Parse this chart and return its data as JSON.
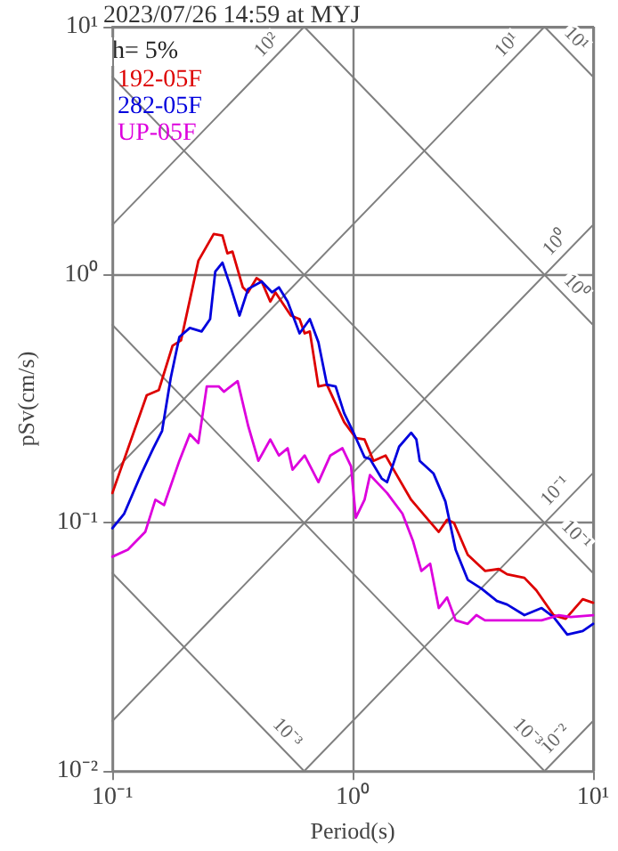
{
  "chart_data": {
    "type": "line",
    "title": "2023/07/26 14:59 at MYJ",
    "xlabel": "Period(s)",
    "ylabel": "pSv(cm/s)",
    "legend_title": "h= 5%",
    "log": "xy",
    "xlim": [
      0.1,
      10
    ],
    "ylim": [
      0.01,
      10
    ],
    "xticks": [
      {
        "value": 0.1,
        "label": "10⁻¹"
      },
      {
        "value": 1,
        "label": "10⁰"
      },
      {
        "value": 10,
        "label": "10¹"
      }
    ],
    "yticks": [
      {
        "value": 0.01,
        "label": "10⁻²"
      },
      {
        "value": 0.1,
        "label": "10⁻¹"
      },
      {
        "value": 1,
        "label": "10⁰"
      },
      {
        "value": 10,
        "label": "10¹"
      }
    ],
    "grid": true,
    "legend": "top left",
    "marker": "none",
    "line_style": "solid",
    "series": [
      {
        "name": "192-05F",
        "color": "#dd0000",
        "x": [
          0.1,
          0.139,
          0.156,
          0.178,
          0.193,
          0.228,
          0.264,
          0.287,
          0.301,
          0.316,
          0.349,
          0.367,
          0.398,
          0.418,
          0.454,
          0.477,
          0.553,
          0.601,
          0.631,
          0.663,
          0.72,
          0.781,
          0.921,
          1.03,
          1.12,
          1.22,
          1.37,
          1.48,
          1.75,
          2.06,
          2.28,
          2.47,
          2.64,
          3.01,
          3.55,
          4.05,
          4.39,
          5.18,
          5.81,
          6.85,
          7.69,
          9.06,
          10
        ],
        "values": [
          0.132,
          0.327,
          0.343,
          0.518,
          0.544,
          1.14,
          1.46,
          1.44,
          1.22,
          1.24,
          0.89,
          0.85,
          0.97,
          0.94,
          0.78,
          0.85,
          0.685,
          0.663,
          0.581,
          0.591,
          0.355,
          0.361,
          0.255,
          0.22,
          0.217,
          0.178,
          0.187,
          0.164,
          0.124,
          0.103,
          0.092,
          0.103,
          0.1,
          0.0744,
          0.0641,
          0.0652,
          0.0621,
          0.0601,
          0.0535,
          0.0425,
          0.0411,
          0.0493,
          0.0477
        ]
      },
      {
        "name": "282-05F",
        "color": "#0000dd",
        "x": [
          0.1,
          0.112,
          0.132,
          0.148,
          0.161,
          0.175,
          0.19,
          0.21,
          0.235,
          0.255,
          0.268,
          0.287,
          0.311,
          0.338,
          0.367,
          0.418,
          0.462,
          0.493,
          0.536,
          0.601,
          0.663,
          0.72,
          0.781,
          0.849,
          0.921,
          1.0,
          1.12,
          1.18,
          1.32,
          1.39,
          1.56,
          1.75,
          1.84,
          1.9,
          2.17,
          2.43,
          2.68,
          3.01,
          3.43,
          3.98,
          4.39,
          5.18,
          6.11,
          6.85,
          7.81,
          9.06,
          10
        ],
        "values": [
          0.0952,
          0.109,
          0.158,
          0.2,
          0.235,
          0.385,
          0.562,
          0.611,
          0.591,
          0.663,
          1.03,
          1.12,
          0.89,
          0.685,
          0.877,
          0.94,
          0.85,
          0.89,
          0.78,
          0.581,
          0.663,
          0.535,
          0.361,
          0.355,
          0.277,
          0.235,
          0.184,
          0.181,
          0.151,
          0.146,
          0.203,
          0.231,
          0.217,
          0.178,
          0.158,
          0.122,
          0.078,
          0.059,
          0.0544,
          0.0485,
          0.0469,
          0.0425,
          0.0454,
          0.0418,
          0.0355,
          0.0367,
          0.0392
        ]
      },
      {
        "name": "UP-05F",
        "color": "#dd00dd",
        "x": [
          0.1,
          0.116,
          0.137,
          0.151,
          0.164,
          0.19,
          0.21,
          0.228,
          0.247,
          0.277,
          0.291,
          0.332,
          0.367,
          0.405,
          0.454,
          0.493,
          0.536,
          0.562,
          0.631,
          0.72,
          0.807,
          0.906,
          0.984,
          1.03,
          1.12,
          1.18,
          1.39,
          1.61,
          1.78,
          1.93,
          2.1,
          2.28,
          2.47,
          2.68,
          3.01,
          3.27,
          3.55,
          4.18,
          4.93,
          6.11,
          7.2,
          8.07,
          10
        ],
        "values": [
          0.0731,
          0.078,
          0.092,
          0.124,
          0.118,
          0.178,
          0.228,
          0.21,
          0.355,
          0.355,
          0.338,
          0.373,
          0.247,
          0.178,
          0.217,
          0.187,
          0.2,
          0.164,
          0.187,
          0.146,
          0.187,
          0.2,
          0.169,
          0.105,
          0.124,
          0.156,
          0.132,
          0.109,
          0.0848,
          0.0641,
          0.0685,
          0.0454,
          0.0501,
          0.0405,
          0.0392,
          0.0425,
          0.0405,
          0.0405,
          0.0405,
          0.0405,
          0.0425,
          0.0418,
          0.0425
        ]
      },
      {
        "color": "#808080",
        "x": [
          0.1,
          0.628
        ],
        "values": [
          1.59,
          10
        ]
      },
      {
        "color": "#808080",
        "x": [
          0.1,
          6.28
        ],
        "values": [
          0.159,
          10
        ]
      },
      {
        "color": "#808080",
        "x": [
          0.1,
          10
        ],
        "values": [
          0.0159,
          1.59
        ]
      },
      {
        "color": "#808080",
        "x": [
          0.628,
          10
        ],
        "values": [
          0.01,
          0.159
        ]
      },
      {
        "color": "#808080",
        "x": [
          6.28,
          10
        ],
        "values": [
          0.01,
          0.0159
        ]
      },
      {
        "color": "#808080",
        "x": [
          6.28,
          10
        ],
        "values": [
          10,
          6.28
        ]
      },
      {
        "color": "#808080",
        "x": [
          0.628,
          10
        ],
        "values": [
          10,
          0.628
        ]
      },
      {
        "color": "#808080",
        "x": [
          0.1,
          10
        ],
        "values": [
          6.28,
          0.0628
        ]
      },
      {
        "color": "#808080",
        "x": [
          0.1,
          6.28
        ],
        "values": [
          0.628,
          0.01
        ]
      },
      {
        "color": "#808080",
        "x": [
          0.1,
          0.628
        ],
        "values": [
          0.0628,
          0.01
        ]
      }
    ],
    "annotations": [
      {
        "text": "10²",
        "x": 0.628,
        "y": 10
      },
      {
        "text": "10¹",
        "x": 6.28,
        "y": 10
      },
      {
        "text": "10⁰",
        "x": 10,
        "y": 1.59
      },
      {
        "text": "10⁻¹",
        "x": 10,
        "y": 0.159
      },
      {
        "text": "10⁻²",
        "x": 10,
        "y": 0.0159
      },
      {
        "text": "10¹",
        "x": 10,
        "y": 6.28
      },
      {
        "text": "10⁰",
        "x": 10,
        "y": 0.628
      },
      {
        "text": "10⁻¹",
        "x": 10,
        "y": 0.0628
      },
      {
        "text": "10⁻³",
        "x": 6.28,
        "y": 0.01
      },
      {
        "text": "10⁻³",
        "x": 0.628,
        "y": 0.01
      }
    ]
  }
}
